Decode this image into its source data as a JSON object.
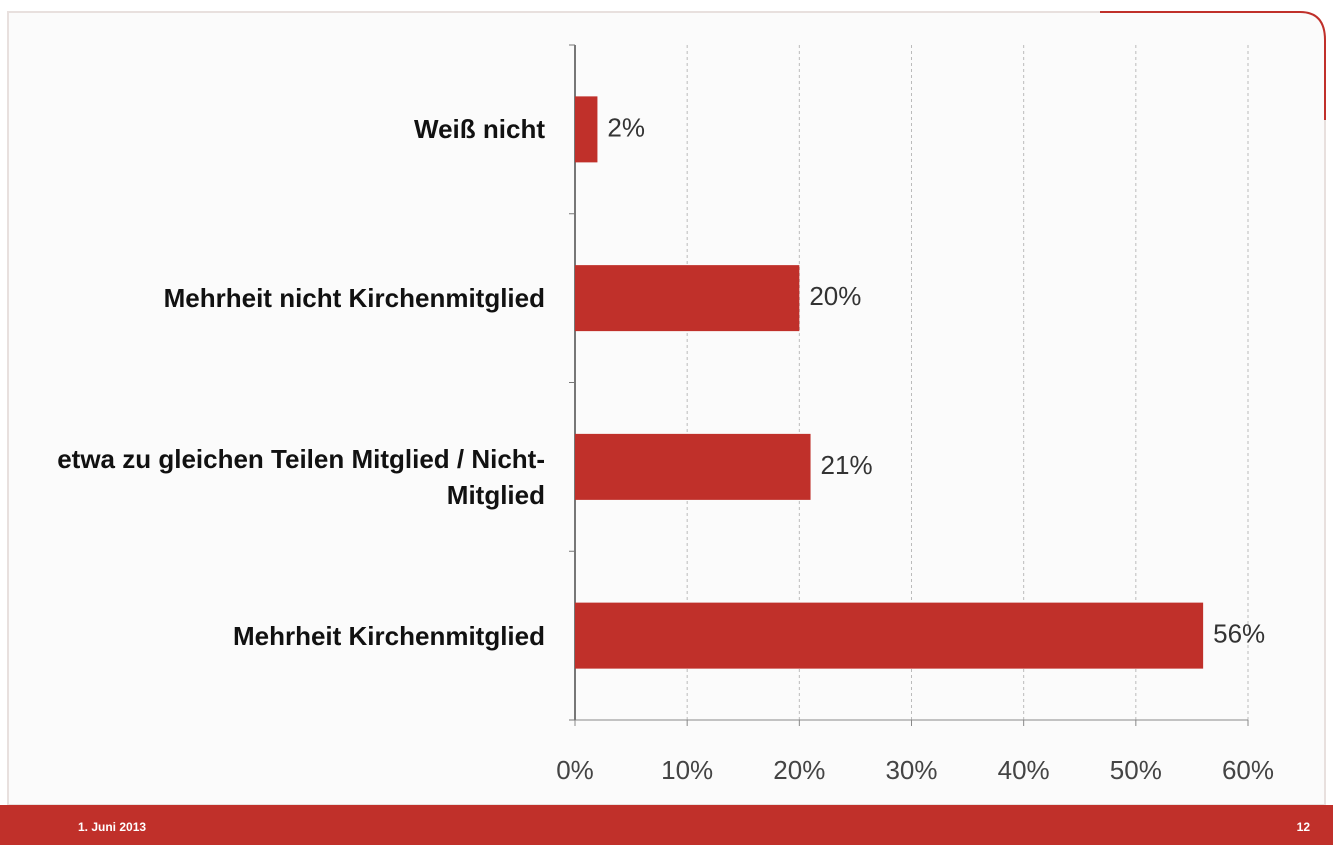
{
  "chart_data": {
    "type": "bar",
    "orientation": "horizontal",
    "categories": [
      "Weiß nicht",
      "Mehrheit nicht Kirchenmitglied",
      "etwa zu gleichen Teilen Mitglied / Nicht-Mitglied",
      "Mehrheit Kirchenmitglied"
    ],
    "values": [
      2,
      20,
      21,
      56
    ],
    "value_labels": [
      "2%",
      "20%",
      "21%",
      "56%"
    ],
    "color": "#c0302a",
    "xlim": [
      0,
      60
    ],
    "xticks": [
      {
        "value": 0,
        "label": "0%"
      },
      {
        "value": 10,
        "label": "10%"
      },
      {
        "value": 20,
        "label": "20%"
      },
      {
        "value": 30,
        "label": "30%"
      },
      {
        "value": 40,
        "label": "40%"
      },
      {
        "value": 50,
        "label": "50%"
      },
      {
        "value": 60,
        "label": "60%"
      }
    ],
    "grid": true
  },
  "footer": {
    "date": "1. Juni 2013",
    "page": "12"
  }
}
